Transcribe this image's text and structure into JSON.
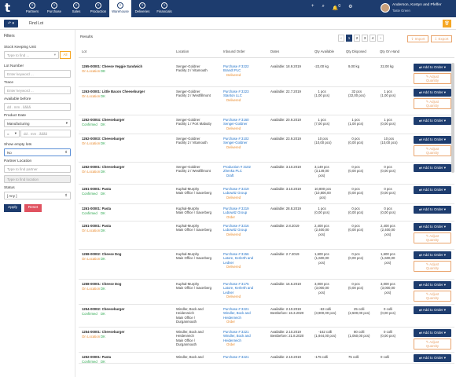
{
  "app": {
    "logo": "t",
    "user_name": "Anderson, Kostyn and Pfeffer",
    "user_role": "Taste Green"
  },
  "nav": [
    {
      "icon": "partners-icon",
      "label": "Partners",
      "active": false
    },
    {
      "icon": "purchase-icon",
      "label": "Purchase",
      "active": false
    },
    {
      "icon": "sales-icon",
      "label": "Sales",
      "active": false
    },
    {
      "icon": "production-icon",
      "label": "Production",
      "active": false
    },
    {
      "icon": "warehouse-icon",
      "label": "Warehouse",
      "active": true
    },
    {
      "icon": "deliveries-icon",
      "label": "Deliveries",
      "active": false
    },
    {
      "icon": "financials-icon",
      "label": "Financials",
      "active": false
    }
  ],
  "toolbar": {
    "plus": "+",
    "search": "⌕",
    "bell": "🔔",
    "bell_count": "0",
    "settings": "⚙"
  },
  "breadcrumb": {
    "back": "↶ ▾",
    "page": "Find Lot",
    "delete": "🗑"
  },
  "filters": {
    "title": "Filters",
    "sku_label": "Stock Keeping Unit",
    "sku_placeholder": "Type to find ...",
    "sku_all": "All",
    "lot_label": "Lot Number",
    "lot_placeholder": "Enter keyword ...",
    "trace_label": "Trace",
    "trace_placeholder": "Enter keyword ...",
    "avail_label": "Available before",
    "avail_placeholder": "dd . mm . åååå",
    "pdate_label": "Product Date",
    "pdate_value": "Manufacturing",
    "pdate_op": "=",
    "pdate_placeholder": "dd . mm . åååå",
    "empty_label": "Show empty lots",
    "empty_value": "No",
    "partner_label": "Partner Location",
    "partner_placeholder": "Type to find partner",
    "location_placeholder": "Type to find location",
    "status_label": "Status",
    "status_value": "[ Any ]",
    "apply": "Apply",
    "reset": "Reset"
  },
  "results": {
    "title": "Results",
    "pages": [
      "‹",
      "1",
      "2",
      "3",
      "4",
      "›"
    ],
    "current_page": "1",
    "import": "⇪ Import",
    "export": "⇩ Export",
    "columns": {
      "lot": "Lot",
      "location": "Location",
      "inbound": "Inbound Order",
      "dates": "Dates",
      "qty_available": "Qty Available",
      "qty_disposed": "Qty Disposed",
      "qty_on_hand": "Qty On Hand"
    },
    "add_to_order": "⇄ Add to Order ▾",
    "adjust": "✎ Adjust\nQuantity",
    "rows": [
      {
        "lot": "1265-00001: Cheese Veggie Sandwich",
        "state": "On Location",
        "flag": "DE",
        "loc": "Senger-Goldner\nFacility 2 / Vitamouth",
        "order": "Purchase # 3222\nBrandt PLC",
        "order_status": "Delivered",
        "order_status_color": "orange",
        "dates": "Available: 18.9.2019",
        "qa": "-22,00 kg",
        "qd": "9,00 kg",
        "qh": "22,00 kg",
        "adjust": true,
        "h": 32
      },
      {
        "lot": "1263-00001: Little Bacon Cheeseburger",
        "state": "On Location",
        "flag": "DK",
        "loc": "Senger-Goldner\nFacility 2 / Westfillmont",
        "order": "Purchase # 3223\nStanton LLC",
        "order_status": "Delivered",
        "order_status_color": "orange",
        "dates": "Available: 22.7.2019",
        "qa": "1 pcs\n(1,00 pcs)",
        "qd": "32 pcs\n(32,00 pcs)",
        "qh": "1 pcs\n(1,00 pcs)",
        "adjust": true,
        "h": 36
      },
      {
        "lot": "1262-00004: Cheeseburger",
        "state": "Confirmed",
        "flag": "DK",
        "loc": "Senger-Goldner\nFacility 1 / Port Mabutty",
        "order": "Purchase # 3160\nSenger-Goldner",
        "order_status": "Delivered",
        "order_status_color": "orange",
        "dates": "Available: 20.9.2019",
        "qa": "1 pcs\n(7,00 pcs)",
        "qd": "1 pcs\n(1,00 pcs)",
        "qh": "1 pcs\n(0,00 pcs)",
        "adjust": false,
        "h": 24
      },
      {
        "lot": "1262-00003: Cheeseburger",
        "state": "On Location",
        "flag": "DK",
        "loc": "Senger-Goldner\nFacility 2 / Vitamouth",
        "order": "Purchase # 3102\nSenger-Goldner",
        "order_status": "Delivered",
        "order_status_color": "orange",
        "dates": "Available: 23.9.2019",
        "qa": "10 pcs\n(10,00 pcs)",
        "qd": "0 pcs\n(0,00 pcs)",
        "qh": "10 pcs\n(10,00 pcs)",
        "adjust": true,
        "h": 36
      },
      {
        "lot": "1262-00001: Cheeseburger",
        "state": "On Location",
        "flag": "DK",
        "loc": "Senger-Goldner\nFacility 2 / Westfillmont",
        "order": "Production # 3102\nZhenka PLC",
        "order_status": "Draft",
        "order_status_color": "blue",
        "dates": "Available: 3.10.2019",
        "qa": "3,149 pcs\n(3,149,00\npcs)",
        "qd": "0 pcs\n(0,00 pcs)",
        "qh": "0 pcs\n(0,00 pcs)",
        "adjust": false,
        "h": 28
      },
      {
        "lot": "1261-00001: Pasta",
        "state": "Confirmed",
        "flag": "DK",
        "loc": "Kuphal-Murphy\nMain Office / Saxerberg",
        "order": "Purchase # 3219\nLubowitz Group",
        "order_status": "Delivered",
        "order_status_color": "orange",
        "dates": "Available: 3.10.2019",
        "qa": "10,800 pcs\n(10,800,00\npcs)",
        "qd": "0 pcs\n(0,00 pcs)",
        "qh": "0 pcs\n(0,00 pcs)",
        "adjust": false,
        "h": 25
      },
      {
        "lot": "1261-00001: Pasta",
        "state": "Confirmed",
        "flag": "DK",
        "loc": "Kuphal-Murphy\nMain Office / Saxerberg",
        "order": "Purchase # 3219\nLubowitz Group",
        "order_status": "Order",
        "order_status_color": "orange",
        "dates": "Available: 28.8.2019",
        "qa": "1 pcs\n(0,00 pcs)",
        "qd": "0 pcs\n(0,00 pcs)",
        "qh": "0 pcs\n(0,00 pcs)",
        "adjust": false,
        "h": 22
      },
      {
        "lot": "1261-00001: Pasta",
        "state": "On Location",
        "flag": "DK",
        "loc": "Kuphal-Murphy\nMain Office / Saxerberg",
        "order": "Purchase # 3216\nLubowitz Group",
        "order_status": "Delivered",
        "order_status_color": "orange",
        "dates": "Available: 2.8.2019",
        "qa": "2,400 pcs\n(2,400,00\npcs)",
        "qd": "0 pcs\n(0,00 pcs)",
        "qh": "2,400 pcs\n(2,400,00\npcs)",
        "adjust": true,
        "h": 36
      },
      {
        "lot": "1258-00002: Cheese Dog",
        "state": "On Location",
        "flag": "DK",
        "loc": "Kuphal-Murphy\nMain Office / Saxerberg",
        "order": "Purchase # 3156\nLatore, Kerlerth and\nLedner",
        "order_status": "Delivered",
        "order_status_color": "orange",
        "dates": "Available: 2.7.2019",
        "qa": "1,600 pcs\n(1,600,00\npcs)",
        "qd": "0 pcs\n(0,00 pcs)",
        "qh": "1,600 pcs\n(1,600,00\npcs)",
        "adjust": true,
        "h": 38
      },
      {
        "lot": "1258-00001: Cheese Dog",
        "state": "On Location",
        "flag": "DK",
        "loc": "Kuphal-Murphy\nMain Office / Saxerberg",
        "order": "Purchase # 3175\nLatore, Kerlerth and\nLedner",
        "order_status": "Delivered",
        "order_status_color": "orange",
        "dates": "Available: 16.6.2019",
        "qa": "3,000 pcs\n(3,000,00\npcs)",
        "qd": "0 pcs\n(0,00 pcs)",
        "qh": "3,000 pcs\n(3,000,00\npcs)",
        "adjust": true,
        "h": 32
      },
      {
        "lot": "1254-00002: Cheeseburger",
        "state": "Confirmed",
        "flag": "DK",
        "loc": "Windler, Bock and\nHeidenreich\nMain Office /\nDurganmouth",
        "order": "Purchase # 3221\nWindler, Bock and\nHeidenreich",
        "order_status": "Order",
        "order_status_color": "orange",
        "dates": "Available: 2.10.2019\nBestbefore: 16.3.2020",
        "qa": "-63 colli\n(3,900,00 pcs)",
        "qd": "25 colli\n(2,500,00 pcs)",
        "qh": "0 colli\n(0,00 pcs)",
        "adjust": false,
        "h": 29
      },
      {
        "lot": "1254-00001: Cheeseburger",
        "state": "On Location",
        "flag": "DK",
        "loc": "Windler, Bock and\nHeidenreich\nMain Office /\nDurganmouth",
        "order": "Purchase # 3221\nWindler, Bock and\nHeidenreich",
        "order_status": "Order",
        "order_status_color": "orange",
        "dates": "Available: 2.10.2019\nBestbefore: 21.8.2020",
        "qa": "-162 colli\n(1,944,00 pcs)",
        "qd": "80 colli\n(1,050,00 pcs)",
        "qh": "0 colli\n(0,00 pcs)",
        "adjust": true,
        "h": 32
      },
      {
        "lot": "1252-00001: Pasta",
        "state": "Confirmed",
        "flag": "DK",
        "loc": "Windler, Bock and",
        "order": "Purchase # 3221",
        "order_status": "",
        "order_status_color": "orange",
        "dates": "Available: 2.10.2019",
        "qa": "-175 colli",
        "qd": "75 colli",
        "qh": "0 colli",
        "adjust": false,
        "h": 14
      }
    ]
  }
}
